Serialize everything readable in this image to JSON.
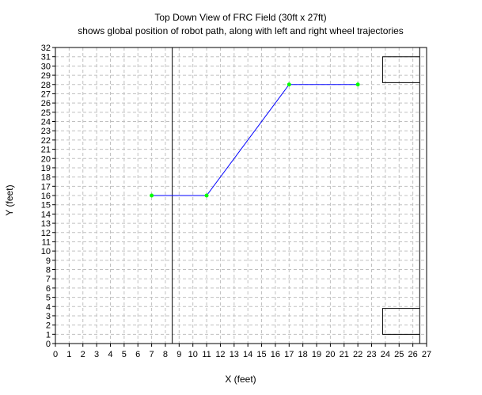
{
  "chart_data": {
    "type": "line",
    "title": "Top Down View of FRC Field (30ft x 27ft)",
    "subtitle": "shows global position of robot path, along with left and right wheel trajectories",
    "xlabel": "X (feet)",
    "ylabel": "Y (feet)",
    "xlim": [
      0,
      27
    ],
    "ylim": [
      0,
      32
    ],
    "grid": true,
    "x_ticks": [
      0,
      1,
      2,
      3,
      4,
      5,
      6,
      7,
      8,
      9,
      10,
      11,
      12,
      13,
      14,
      15,
      16,
      17,
      18,
      19,
      20,
      21,
      22,
      23,
      24,
      25,
      26,
      27
    ],
    "y_ticks": [
      0,
      1,
      2,
      3,
      4,
      5,
      6,
      7,
      8,
      9,
      10,
      11,
      12,
      13,
      14,
      15,
      16,
      17,
      18,
      19,
      20,
      21,
      22,
      23,
      24,
      25,
      26,
      27,
      28,
      29,
      30,
      31,
      32
    ],
    "series": [
      {
        "name": "robot path",
        "color": "#0000ff",
        "x": [
          7,
          11,
          17,
          22
        ],
        "y": [
          16,
          16,
          28,
          28
        ],
        "marker_color": "#00ff00"
      }
    ],
    "field_lines": [
      {
        "name": "vertical-line-left",
        "x": [
          8.5,
          8.5
        ],
        "y": [
          0,
          32
        ]
      },
      {
        "name": "vertical-line-right",
        "x": [
          26.5,
          26.5
        ],
        "y": [
          0,
          32
        ]
      },
      {
        "name": "top-box",
        "x": [
          26.5,
          23.8,
          23.8,
          26.5
        ],
        "y": [
          31,
          31,
          28.2,
          28.2
        ]
      },
      {
        "name": "bottom-box",
        "x": [
          26.5,
          23.8,
          23.8,
          26.5
        ],
        "y": [
          3.8,
          3.8,
          1,
          1
        ]
      }
    ]
  },
  "colors": {
    "grid": "#c0c0c0",
    "axis": "#000000",
    "field_line": "#000000"
  }
}
